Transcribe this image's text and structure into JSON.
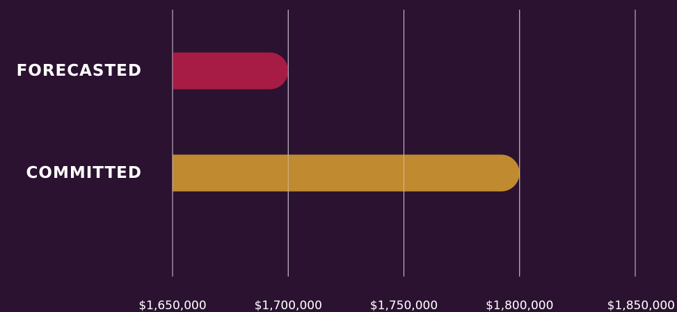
{
  "chart_data": {
    "type": "bar",
    "orientation": "horizontal",
    "title": "",
    "xlabel": "",
    "ylabel": "",
    "categories": [
      "FORECASTED",
      "COMMITTED"
    ],
    "values": [
      1700000,
      1800000
    ],
    "bar_colors": [
      "#a61c45",
      "#bf8a30"
    ],
    "xlim": [
      1650000,
      1850000
    ],
    "xticks": [
      1650000,
      1700000,
      1750000,
      1800000,
      1850000
    ],
    "xtick_labels": [
      "$1,650,000",
      "$1,700,000",
      "$1,750,000",
      "$1,800,000",
      "$1,850,000"
    ],
    "grid": "vertical",
    "legend": "none"
  },
  "colors": {
    "background": "#2a1230",
    "gridline": "#d8d0dc",
    "text": "#ffffff"
  }
}
